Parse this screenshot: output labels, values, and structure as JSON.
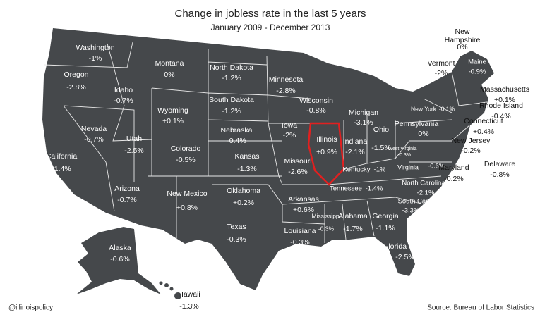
{
  "title": "Change in jobless rate in the last 5 years",
  "subtitle": "January 2009 - December 2013",
  "states": [
    {
      "name": "Washington",
      "change": "-1%"
    },
    {
      "name": "Oregon",
      "change": "-2.8%"
    },
    {
      "name": "California",
      "change": "-1.4%"
    },
    {
      "name": "Nevada",
      "change": "-0.7%"
    },
    {
      "name": "Idaho",
      "change": "-0.7%"
    },
    {
      "name": "Montana",
      "change": "0%"
    },
    {
      "name": "Wyoming",
      "change": "+0.1%"
    },
    {
      "name": "Utah",
      "change": "-2.5%"
    },
    {
      "name": "Colorado",
      "change": "-0.5%"
    },
    {
      "name": "Arizona",
      "change": "-0.7%"
    },
    {
      "name": "New Mexico",
      "change": "+0.8%"
    },
    {
      "name": "North Dakota",
      "change": "-1.2%"
    },
    {
      "name": "South Dakota",
      "change": "-1.2%"
    },
    {
      "name": "Nebraska",
      "change": "-0.4%"
    },
    {
      "name": "Kansas",
      "change": "-1.3%"
    },
    {
      "name": "Oklahoma",
      "change": "+0.2%"
    },
    {
      "name": "Texas",
      "change": "-0.3%"
    },
    {
      "name": "Minnesota",
      "change": "-2.8%"
    },
    {
      "name": "Iowa",
      "change": "-2%"
    },
    {
      "name": "Missouri",
      "change": "-2.6%"
    },
    {
      "name": "Arkansas",
      "change": "+0.6%"
    },
    {
      "name": "Louisiana",
      "change": "-0.3%"
    },
    {
      "name": "Mississippi",
      "change": "-0.3%"
    },
    {
      "name": "Alabama",
      "change": "-1.7%"
    },
    {
      "name": "Georgia",
      "change": "-1.1%"
    },
    {
      "name": "Florida",
      "change": "-2.5%"
    },
    {
      "name": "Wisconsin",
      "change": "-0.8%"
    },
    {
      "name": "Illinois",
      "change": "+0.9%"
    },
    {
      "name": "Michigan",
      "change": "-3.1%"
    },
    {
      "name": "Indiana",
      "change": "-2.1%"
    },
    {
      "name": "Ohio",
      "change": "-1.5%"
    },
    {
      "name": "Kentucky",
      "change": "-1%"
    },
    {
      "name": "Tennessee",
      "change": "-1.4%"
    },
    {
      "name": "North Carolina",
      "change": "-2.1%"
    },
    {
      "name": "South Carolina",
      "change": "-3.3%"
    },
    {
      "name": "Virginia",
      "change": "-0.6%"
    },
    {
      "name": "West Virginia",
      "change": "-0.3%"
    },
    {
      "name": "Pennsylvania",
      "change": "0%"
    },
    {
      "name": "New York",
      "change": "-0.1%"
    },
    {
      "name": "New Jersey",
      "change": "-0.2%"
    },
    {
      "name": "Delaware",
      "change": "-0.8%"
    },
    {
      "name": "Maryland",
      "change": "-0.2%"
    },
    {
      "name": "Connecticut",
      "change": "+0.4%"
    },
    {
      "name": "Rhode Island",
      "change": "-0.4%"
    },
    {
      "name": "Massachusetts",
      "change": "+0.1%"
    },
    {
      "name": "Vermont",
      "change": "-2%"
    },
    {
      "name": "New Hampshire",
      "change": "0%"
    },
    {
      "name": "Maine",
      "change": "-0.9%"
    },
    {
      "name": "Alaska",
      "change": "-0.6%"
    },
    {
      "name": "Hawaii",
      "change": "-1.3%"
    }
  ],
  "credit": "@illinoispolicy",
  "source": "Source: Bureau of Labor Statistics"
}
